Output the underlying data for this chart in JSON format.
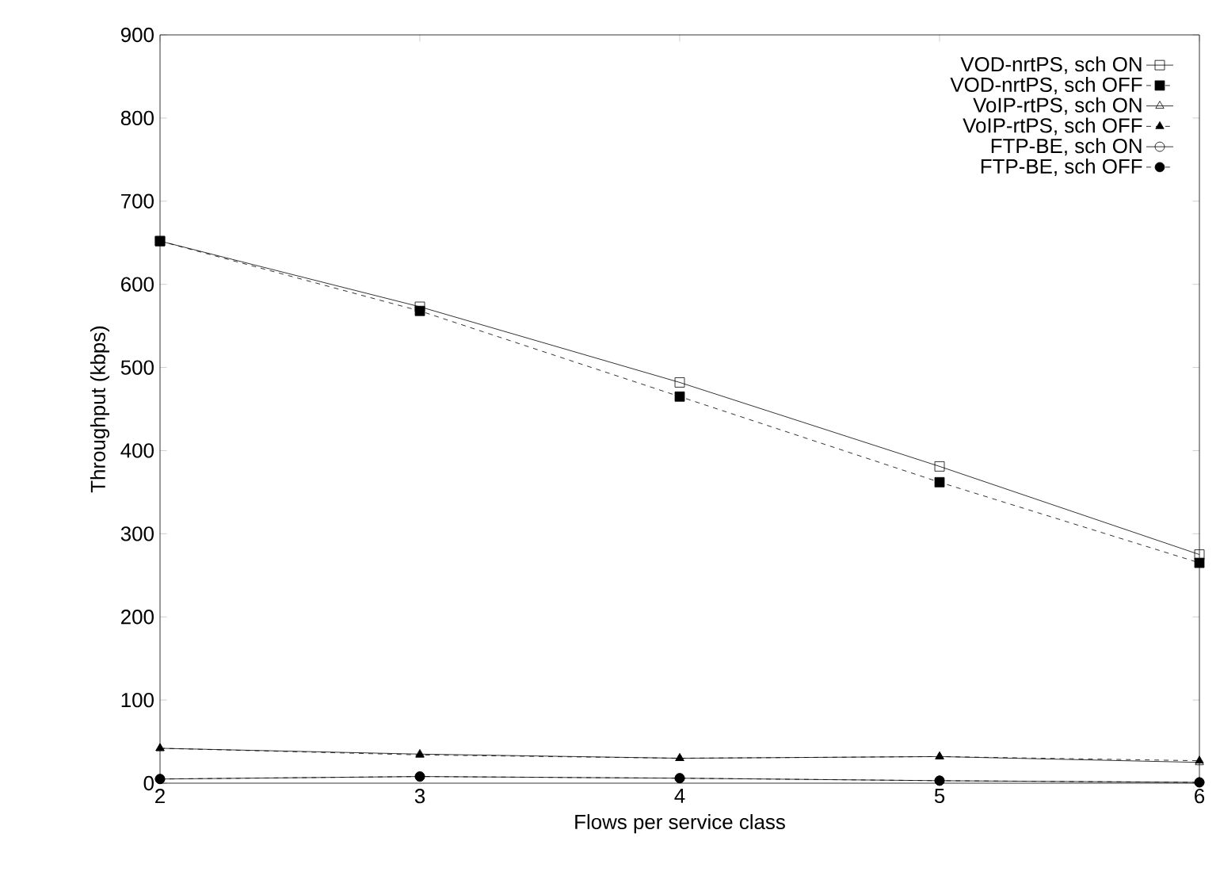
{
  "chart_data": {
    "type": "line",
    "xlabel": "Flows per service class",
    "ylabel": "Throughput (kbps)",
    "x": [
      2,
      3,
      4,
      5,
      6
    ],
    "xlim": [
      2,
      6
    ],
    "xticks": [
      2,
      3,
      4,
      5,
      6
    ],
    "ylim": [
      0,
      900
    ],
    "yticks": [
      0,
      100,
      200,
      300,
      400,
      500,
      600,
      700,
      800,
      900
    ],
    "grid": false,
    "legend": "top right",
    "series": [
      {
        "name": "VOD-nrtPS, sch ON",
        "color": "#000000",
        "marker": "square",
        "line_style": "solid",
        "values": [
          652,
          573,
          482,
          381,
          275
        ]
      },
      {
        "name": "VOD-nrtPS, sch OFF",
        "color": "#000000",
        "marker": "square",
        "line_style": "dashed",
        "values": [
          652,
          568,
          465,
          362,
          265
        ]
      },
      {
        "name": "VoIP-rtPS, sch ON",
        "color": "#000000",
        "marker": "triangle",
        "line_style": "solid",
        "values": [
          42,
          35,
          30,
          32,
          25
        ]
      },
      {
        "name": "VoIP-rtPS, sch OFF",
        "color": "#000000",
        "marker": "triangle",
        "line_style": "dashed",
        "values": [
          42,
          34,
          30,
          32,
          27
        ]
      },
      {
        "name": "FTP-BE, sch ON",
        "color": "#000000",
        "marker": "circle",
        "line_style": "solid",
        "values": [
          5,
          8,
          6,
          3,
          1
        ]
      },
      {
        "name": "FTP-BE, sch OFF",
        "color": "#000000",
        "marker": "circle",
        "line_style": "dashed",
        "values": [
          5,
          8,
          6,
          3,
          1
        ]
      }
    ]
  }
}
